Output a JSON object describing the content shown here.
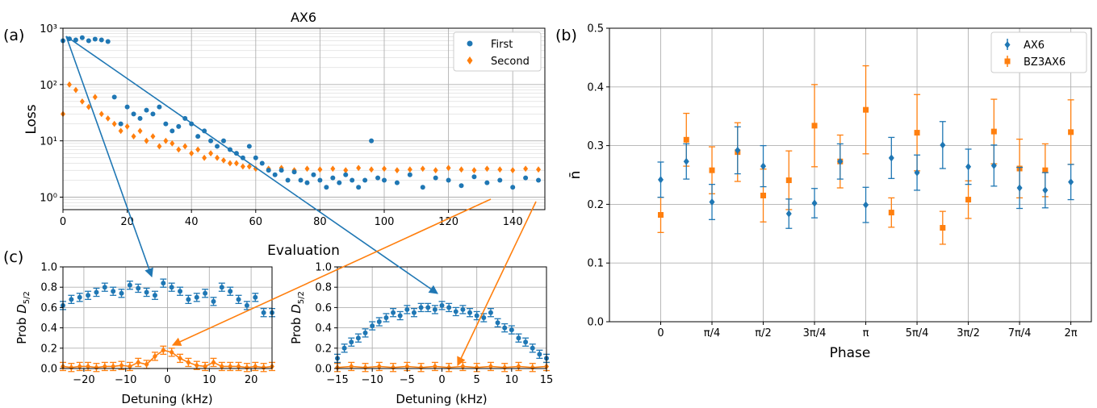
{
  "colors": {
    "blue": "#1f77b4",
    "orange": "#ff7f0e",
    "grid": "#b0b0b0"
  },
  "panel_labels": {
    "a": "(a)",
    "b": "(b)",
    "c": "(c)"
  },
  "chart_data": [
    {
      "id": "a",
      "type": "scatter",
      "title": "AX6",
      "xlabel": "Evaluation",
      "ylabel": "Loss",
      "yscale": "log",
      "xlim": [
        0,
        150
      ],
      "ylim": [
        0.6,
        1000
      ],
      "xticks": [
        "0",
        "20",
        "40",
        "60",
        "80",
        "100",
        "120",
        "140"
      ],
      "yticks": [
        "10⁰",
        "10¹",
        "10²",
        "10³"
      ],
      "grid": true,
      "legend": "top-right",
      "series": [
        {
          "name": "First",
          "marker": "circle",
          "color": "#1f77b4",
          "x": [
            0,
            2,
            4,
            6,
            8,
            10,
            12,
            14,
            16,
            18,
            20,
            22,
            24,
            26,
            28,
            30,
            32,
            34,
            36,
            38,
            40,
            42,
            44,
            46,
            48,
            50,
            52,
            54,
            56,
            58,
            60,
            62,
            64,
            66,
            68,
            70,
            72,
            74,
            76,
            78,
            80,
            82,
            84,
            86,
            88,
            90,
            92,
            94,
            96,
            98,
            100,
            104,
            108,
            112,
            116,
            120,
            124,
            128,
            132,
            136,
            140,
            144,
            148
          ],
          "y": [
            600,
            650,
            620,
            680,
            600,
            640,
            620,
            580,
            60,
            20,
            40,
            30,
            25,
            35,
            30,
            40,
            20,
            15,
            18,
            25,
            20,
            12,
            15,
            10,
            8,
            10,
            7,
            6,
            5,
            8,
            5,
            4,
            3,
            2.5,
            3,
            2,
            2.8,
            2,
            1.8,
            2.5,
            2,
            1.5,
            2.2,
            1.8,
            2.5,
            2,
            1.5,
            2,
            10,
            2.2,
            2,
            1.8,
            2.5,
            1.5,
            2.2,
            2,
            1.6,
            2.3,
            1.8,
            2,
            1.5,
            2.2,
            2
          ]
        },
        {
          "name": "Second",
          "marker": "diamond",
          "color": "#ff7f0e",
          "x": [
            0,
            2,
            4,
            6,
            8,
            10,
            12,
            14,
            16,
            18,
            20,
            22,
            24,
            26,
            28,
            30,
            32,
            34,
            36,
            38,
            40,
            42,
            44,
            46,
            48,
            50,
            52,
            54,
            56,
            58,
            60,
            64,
            68,
            72,
            76,
            80,
            84,
            88,
            92,
            96,
            100,
            104,
            108,
            112,
            116,
            120,
            124,
            128,
            132,
            136,
            140,
            144,
            148
          ],
          "y": [
            30,
            100,
            80,
            50,
            40,
            60,
            30,
            25,
            20,
            15,
            18,
            12,
            15,
            10,
            12,
            8,
            10,
            9,
            7,
            8,
            6,
            7,
            5,
            6,
            5,
            4.5,
            4,
            4,
            3.5,
            3.5,
            3.2,
            3.2,
            3.3,
            3,
            3.2,
            3.1,
            3.2,
            3,
            3.3,
            3.1,
            3.2,
            3,
            3.1,
            3.2,
            3,
            3.3,
            3.1,
            3,
            3.2,
            3.1,
            3,
            3.2,
            3.1
          ]
        }
      ]
    },
    {
      "id": "b",
      "type": "scatter",
      "xlabel": "Phase",
      "ylabel": "n̄",
      "xlim": [
        -0.25,
        2.1
      ],
      "ylim": [
        0.0,
        0.5
      ],
      "xticks": [
        "0",
        "π/4",
        "π/2",
        "3π/4",
        "π",
        "5π/4",
        "3π/2",
        "7π/4",
        "2π"
      ],
      "yticks": [
        "0.0",
        "0.1",
        "0.2",
        "0.3",
        "0.4",
        "0.5"
      ],
      "grid": true,
      "legend": "top-right",
      "series": [
        {
          "name": "AX6",
          "marker": "diamond",
          "color": "#1f77b4",
          "x": [
            0,
            0.125,
            0.25,
            0.375,
            0.5,
            0.625,
            0.75,
            0.875,
            1.0,
            1.125,
            1.25,
            1.375,
            1.5,
            1.625,
            1.75,
            1.875,
            2.0
          ],
          "y": [
            0.242,
            0.273,
            0.204,
            0.292,
            0.265,
            0.184,
            0.202,
            0.273,
            0.199,
            0.279,
            0.254,
            0.301,
            0.264,
            0.266,
            0.228,
            0.224,
            0.238
          ],
          "err": [
            0.03,
            0.03,
            0.03,
            0.04,
            0.035,
            0.025,
            0.025,
            0.03,
            0.03,
            0.035,
            0.03,
            0.04,
            0.03,
            0.035,
            0.035,
            0.03,
            0.03
          ]
        },
        {
          "name": "BZ3AX6",
          "marker": "square",
          "color": "#ff7f0e",
          "x": [
            0,
            0.125,
            0.25,
            0.375,
            0.5,
            0.625,
            0.75,
            0.875,
            1.0,
            1.125,
            1.25,
            1.375,
            1.5,
            1.625,
            1.75,
            1.875,
            2.0
          ],
          "y": [
            0.182,
            0.31,
            0.258,
            0.289,
            0.215,
            0.241,
            0.334,
            0.273,
            0.361,
            0.186,
            0.322,
            0.16,
            0.208,
            0.324,
            0.261,
            0.258,
            0.323
          ],
          "err": [
            0.03,
            0.045,
            0.04,
            0.05,
            0.045,
            0.05,
            0.07,
            0.045,
            0.075,
            0.025,
            0.065,
            0.028,
            0.032,
            0.055,
            0.05,
            0.045,
            0.055
          ]
        }
      ]
    },
    {
      "id": "c1",
      "type": "scatter",
      "xlabel": "Detuning (kHz)",
      "ylabel": "Prob D5/2",
      "xlim": [
        -25,
        25
      ],
      "ylim": [
        0.0,
        1.0
      ],
      "xticks": [
        "−20",
        "−10",
        "0",
        "10",
        "20"
      ],
      "yticks": [
        "0.0",
        "0.2",
        "0.4",
        "0.6",
        "0.8",
        "1.0"
      ],
      "grid": true,
      "series": [
        {
          "name": "First",
          "marker": "circle",
          "color": "#1f77b4",
          "x": [
            -25,
            -23,
            -21,
            -19,
            -17,
            -15,
            -13,
            -11,
            -9,
            -7,
            -5,
            -3,
            -1,
            1,
            3,
            5,
            7,
            9,
            11,
            13,
            15,
            17,
            19,
            21,
            23,
            25
          ],
          "y": [
            0.62,
            0.68,
            0.7,
            0.72,
            0.75,
            0.8,
            0.76,
            0.74,
            0.82,
            0.79,
            0.75,
            0.72,
            0.84,
            0.8,
            0.76,
            0.68,
            0.7,
            0.74,
            0.66,
            0.8,
            0.76,
            0.68,
            0.62,
            0.7,
            0.55,
            0.55
          ]
        },
        {
          "name": "Second",
          "marker": "diamond",
          "color": "#ff7f0e",
          "x": [
            -25,
            -23,
            -21,
            -19,
            -17,
            -15,
            -13,
            -11,
            -9,
            -7,
            -5,
            -3,
            -1,
            1,
            3,
            5,
            7,
            9,
            11,
            13,
            15,
            17,
            19,
            21,
            23,
            25
          ],
          "y": [
            0.02,
            0.01,
            0.02,
            0.02,
            0.01,
            0.02,
            0.02,
            0.03,
            0.02,
            0.06,
            0.04,
            0.12,
            0.18,
            0.16,
            0.1,
            0.06,
            0.03,
            0.02,
            0.06,
            0.02,
            0.02,
            0.02,
            0.01,
            0.02,
            0.01,
            0.02
          ]
        }
      ]
    },
    {
      "id": "c2",
      "type": "scatter",
      "xlabel": "Detuning (kHz)",
      "ylabel": "Prob D5/2",
      "xlim": [
        -15,
        15
      ],
      "ylim": [
        0.0,
        1.0
      ],
      "xticks": [
        "−15",
        "−10",
        "−5",
        "0",
        "5",
        "10",
        "15"
      ],
      "yticks": [
        "0.0",
        "0.2",
        "0.4",
        "0.6",
        "0.8",
        "1.0"
      ],
      "grid": true,
      "series": [
        {
          "name": "First",
          "marker": "circle",
          "color": "#1f77b4",
          "x": [
            -15,
            -14,
            -13,
            -12,
            -11,
            -10,
            -9,
            -8,
            -7,
            -6,
            -5,
            -4,
            -3,
            -2,
            -1,
            0,
            1,
            2,
            3,
            4,
            5,
            6,
            7,
            8,
            9,
            10,
            11,
            12,
            13,
            14,
            15
          ],
          "y": [
            0.1,
            0.2,
            0.26,
            0.3,
            0.35,
            0.42,
            0.46,
            0.5,
            0.55,
            0.52,
            0.58,
            0.55,
            0.6,
            0.6,
            0.58,
            0.62,
            0.6,
            0.56,
            0.58,
            0.55,
            0.52,
            0.5,
            0.55,
            0.45,
            0.4,
            0.38,
            0.3,
            0.26,
            0.2,
            0.14,
            0.1
          ]
        },
        {
          "name": "Second",
          "marker": "diamond",
          "color": "#ff7f0e",
          "x": [
            -15,
            -13,
            -11,
            -9,
            -7,
            -5,
            -3,
            -1,
            1,
            3,
            5,
            7,
            9,
            11,
            13,
            15
          ],
          "y": [
            0.01,
            0.02,
            0.01,
            0.02,
            0.01,
            0.02,
            0.01,
            0.02,
            0.01,
            0.02,
            0.01,
            0.02,
            0.01,
            0.02,
            0.01,
            0.02
          ]
        }
      ]
    }
  ]
}
